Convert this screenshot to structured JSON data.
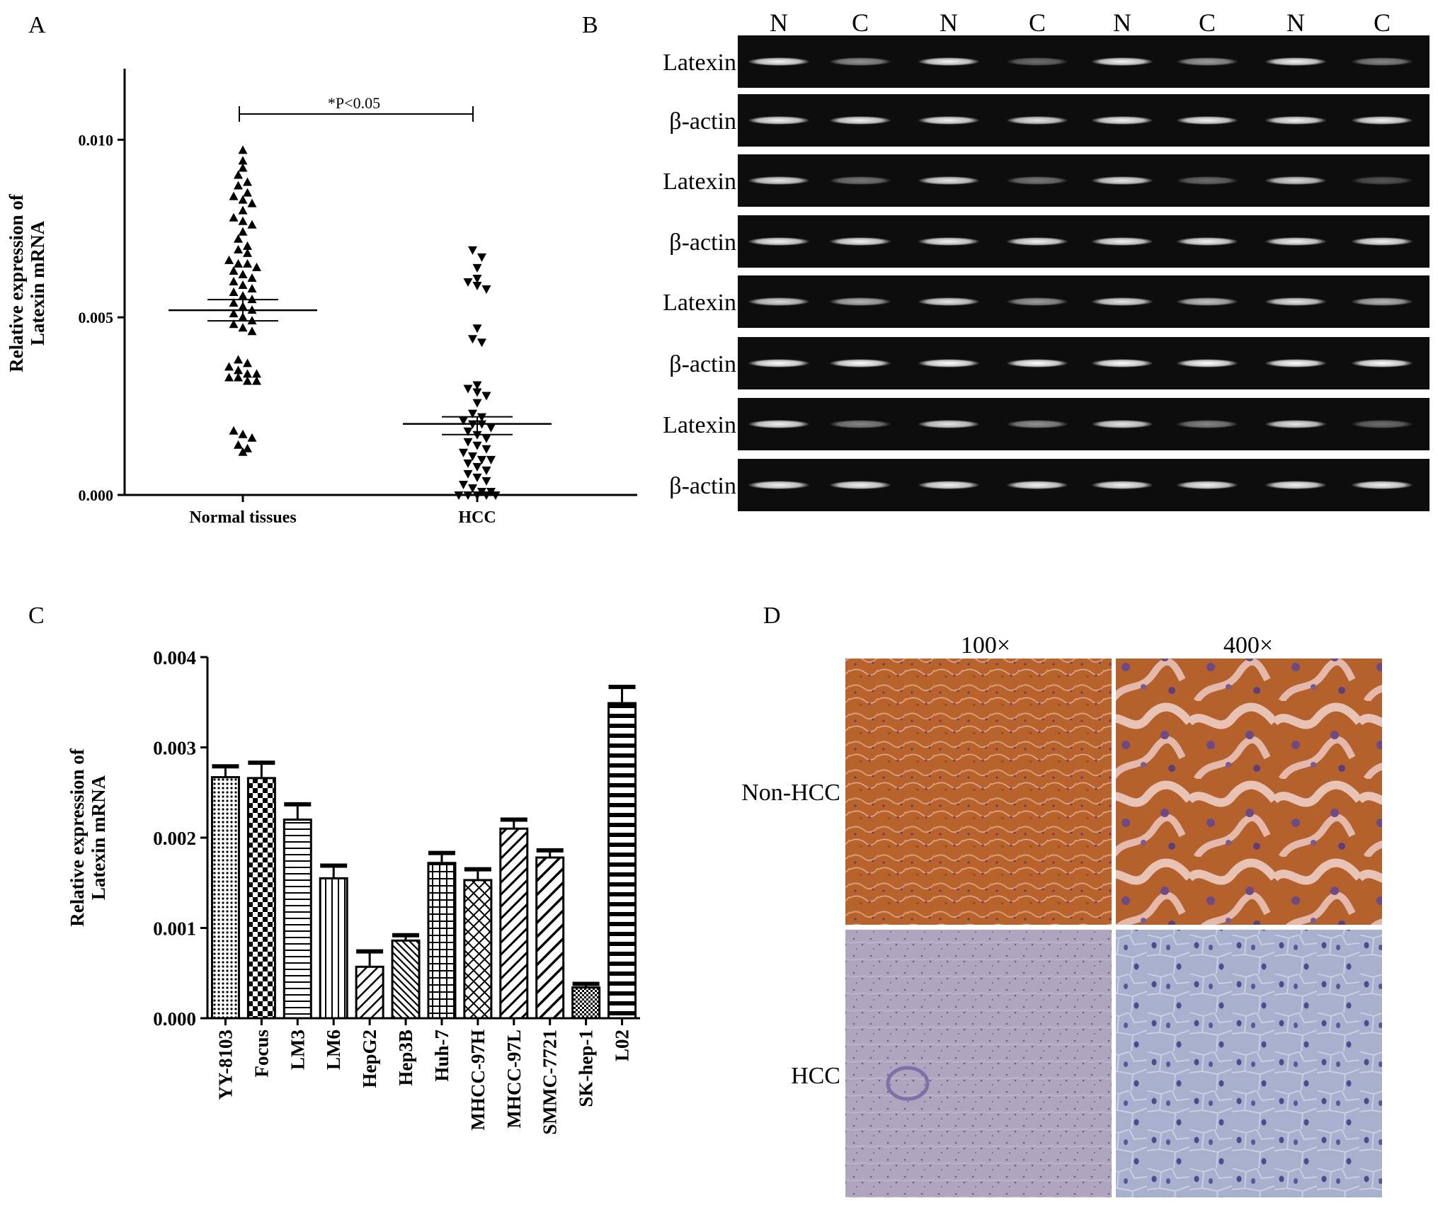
{
  "panel_letters": {
    "a": "A",
    "b": "B",
    "c": "C",
    "d": "D"
  },
  "gel": {
    "lane_labels": [
      "N",
      "C",
      "N",
      "C",
      "N",
      "C",
      "N",
      "C"
    ],
    "row_labels": [
      "Latexin",
      "β-actin",
      "Latexin",
      "β-actin",
      "Latexin",
      "β-actin",
      "Latexin",
      "β-actin"
    ],
    "band_intensity": [
      [
        0.95,
        0.55,
        0.95,
        0.4,
        0.95,
        0.6,
        0.95,
        0.5
      ],
      [
        0.95,
        0.95,
        0.95,
        0.9,
        0.95,
        0.95,
        0.95,
        0.95
      ],
      [
        0.9,
        0.45,
        0.9,
        0.45,
        0.9,
        0.4,
        0.85,
        0.3
      ],
      [
        0.95,
        0.95,
        0.95,
        0.95,
        0.95,
        0.95,
        0.95,
        0.95
      ],
      [
        0.85,
        0.7,
        0.9,
        0.6,
        0.9,
        0.75,
        0.9,
        0.7
      ],
      [
        1.0,
        1.0,
        1.0,
        1.0,
        1.0,
        1.0,
        1.0,
        1.0
      ],
      [
        0.95,
        0.5,
        0.9,
        0.55,
        0.9,
        0.5,
        0.9,
        0.4
      ],
      [
        0.95,
        0.95,
        0.95,
        0.95,
        0.95,
        0.95,
        0.95,
        0.95
      ]
    ],
    "colors": {
      "background": "#0d0d0d",
      "band": "#ffffff"
    }
  },
  "ihc": {
    "column_labels": [
      "100×",
      "400×"
    ],
    "row_labels": [
      "Non-HCC",
      "HCC"
    ],
    "colors": {
      "nonhcc_stain": "#b8622c",
      "hcc_stain": "#a9b2cf",
      "nuclei": "#5a4a8a"
    }
  },
  "chart_data": [
    {
      "type": "scatter",
      "panel": "A",
      "ylabel": "Relative expression of Latexin mRNA",
      "ylabel_lines": [
        "Relative expression of",
        "Latexin mRNA"
      ],
      "categories": [
        "Normal tissues",
        "HCC"
      ],
      "ylim": [
        0,
        0.012
      ],
      "yticks": [
        0.0,
        0.005,
        0.01
      ],
      "ytick_labels": [
        "0.000",
        "0.005",
        "0.010"
      ],
      "grid": false,
      "annotation": "*P<0.05",
      "series": [
        {
          "category": "Normal tissues",
          "marker": "triangle-up",
          "mean": 0.0052,
          "sem_upper": 0.0055,
          "sem_lower": 0.0049,
          "values": [
            0.0097,
            0.0094,
            0.0092,
            0.009,
            0.0088,
            0.0087,
            0.0085,
            0.0084,
            0.0083,
            0.0082,
            0.008,
            0.0078,
            0.0077,
            0.0076,
            0.0074,
            0.0072,
            0.007,
            0.0069,
            0.0068,
            0.0066,
            0.0065,
            0.0065,
            0.0064,
            0.0063,
            0.0062,
            0.0061,
            0.006,
            0.0059,
            0.0058,
            0.0057,
            0.0056,
            0.0055,
            0.0054,
            0.0053,
            0.0052,
            0.0051,
            0.005,
            0.0049,
            0.0048,
            0.0047,
            0.0046,
            0.0038,
            0.0037,
            0.0036,
            0.0035,
            0.0034,
            0.0034,
            0.0033,
            0.0033,
            0.0032,
            0.0032,
            0.0018,
            0.0017,
            0.0016,
            0.0014,
            0.0013,
            0.0012
          ]
        },
        {
          "category": "HCC",
          "marker": "triangle-down",
          "mean": 0.002,
          "sem_upper": 0.0022,
          "sem_lower": 0.0017,
          "values": [
            0.0069,
            0.0067,
            0.0064,
            0.0061,
            0.006,
            0.0059,
            0.0058,
            0.0047,
            0.0044,
            0.0043,
            0.0031,
            0.003,
            0.0029,
            0.0028,
            0.0026,
            0.0023,
            0.0022,
            0.0021,
            0.002,
            0.002,
            0.0019,
            0.0018,
            0.0017,
            0.0016,
            0.0015,
            0.0014,
            0.0013,
            0.0012,
            0.0011,
            0.001,
            0.001,
            0.0009,
            0.0008,
            0.0007,
            0.0006,
            0.0005,
            0.0004,
            0.0003,
            0.0002,
            0.0001,
            0.0001,
            0.0,
            0.0,
            0.0,
            0.0,
            0.0
          ]
        }
      ]
    },
    {
      "type": "bar",
      "panel": "C",
      "ylabel": "Relative expression of Latexin mRNA",
      "ylabel_lines": [
        "Relative expression of",
        "Latexin mRNA"
      ],
      "categories": [
        "YY-8103",
        "Focus",
        "LM3",
        "LM6",
        "HepG2",
        "Hep3B",
        "Huh-7",
        "MHCC-97H",
        "MHCC-97L",
        "SMMC-7721",
        "SK-hep-1",
        "L02"
      ],
      "values": [
        0.00267,
        0.00266,
        0.0022,
        0.00155,
        0.00057,
        0.00086,
        0.00172,
        0.00153,
        0.0021,
        0.00178,
        0.00034,
        0.00349
      ],
      "errors": [
        0.00012,
        0.00017,
        0.00017,
        0.00014,
        0.00017,
        6e-05,
        0.00011,
        0.00012,
        0.0001,
        8e-05,
        4e-05,
        0.00018
      ],
      "patterns": [
        "dots",
        "checker",
        "hlines",
        "vlines",
        "diag-up-sparse",
        "diag-down",
        "grid",
        "diag-grid",
        "diag-up",
        "diag-up-wide",
        "fine-checker",
        "thick-hlines"
      ],
      "ylim": [
        0,
        0.004
      ],
      "yticks": [
        0.0,
        0.001,
        0.002,
        0.003,
        0.004
      ],
      "ytick_labels": [
        "0.000",
        "0.001",
        "0.002",
        "0.003",
        "0.004"
      ],
      "grid": false
    }
  ]
}
